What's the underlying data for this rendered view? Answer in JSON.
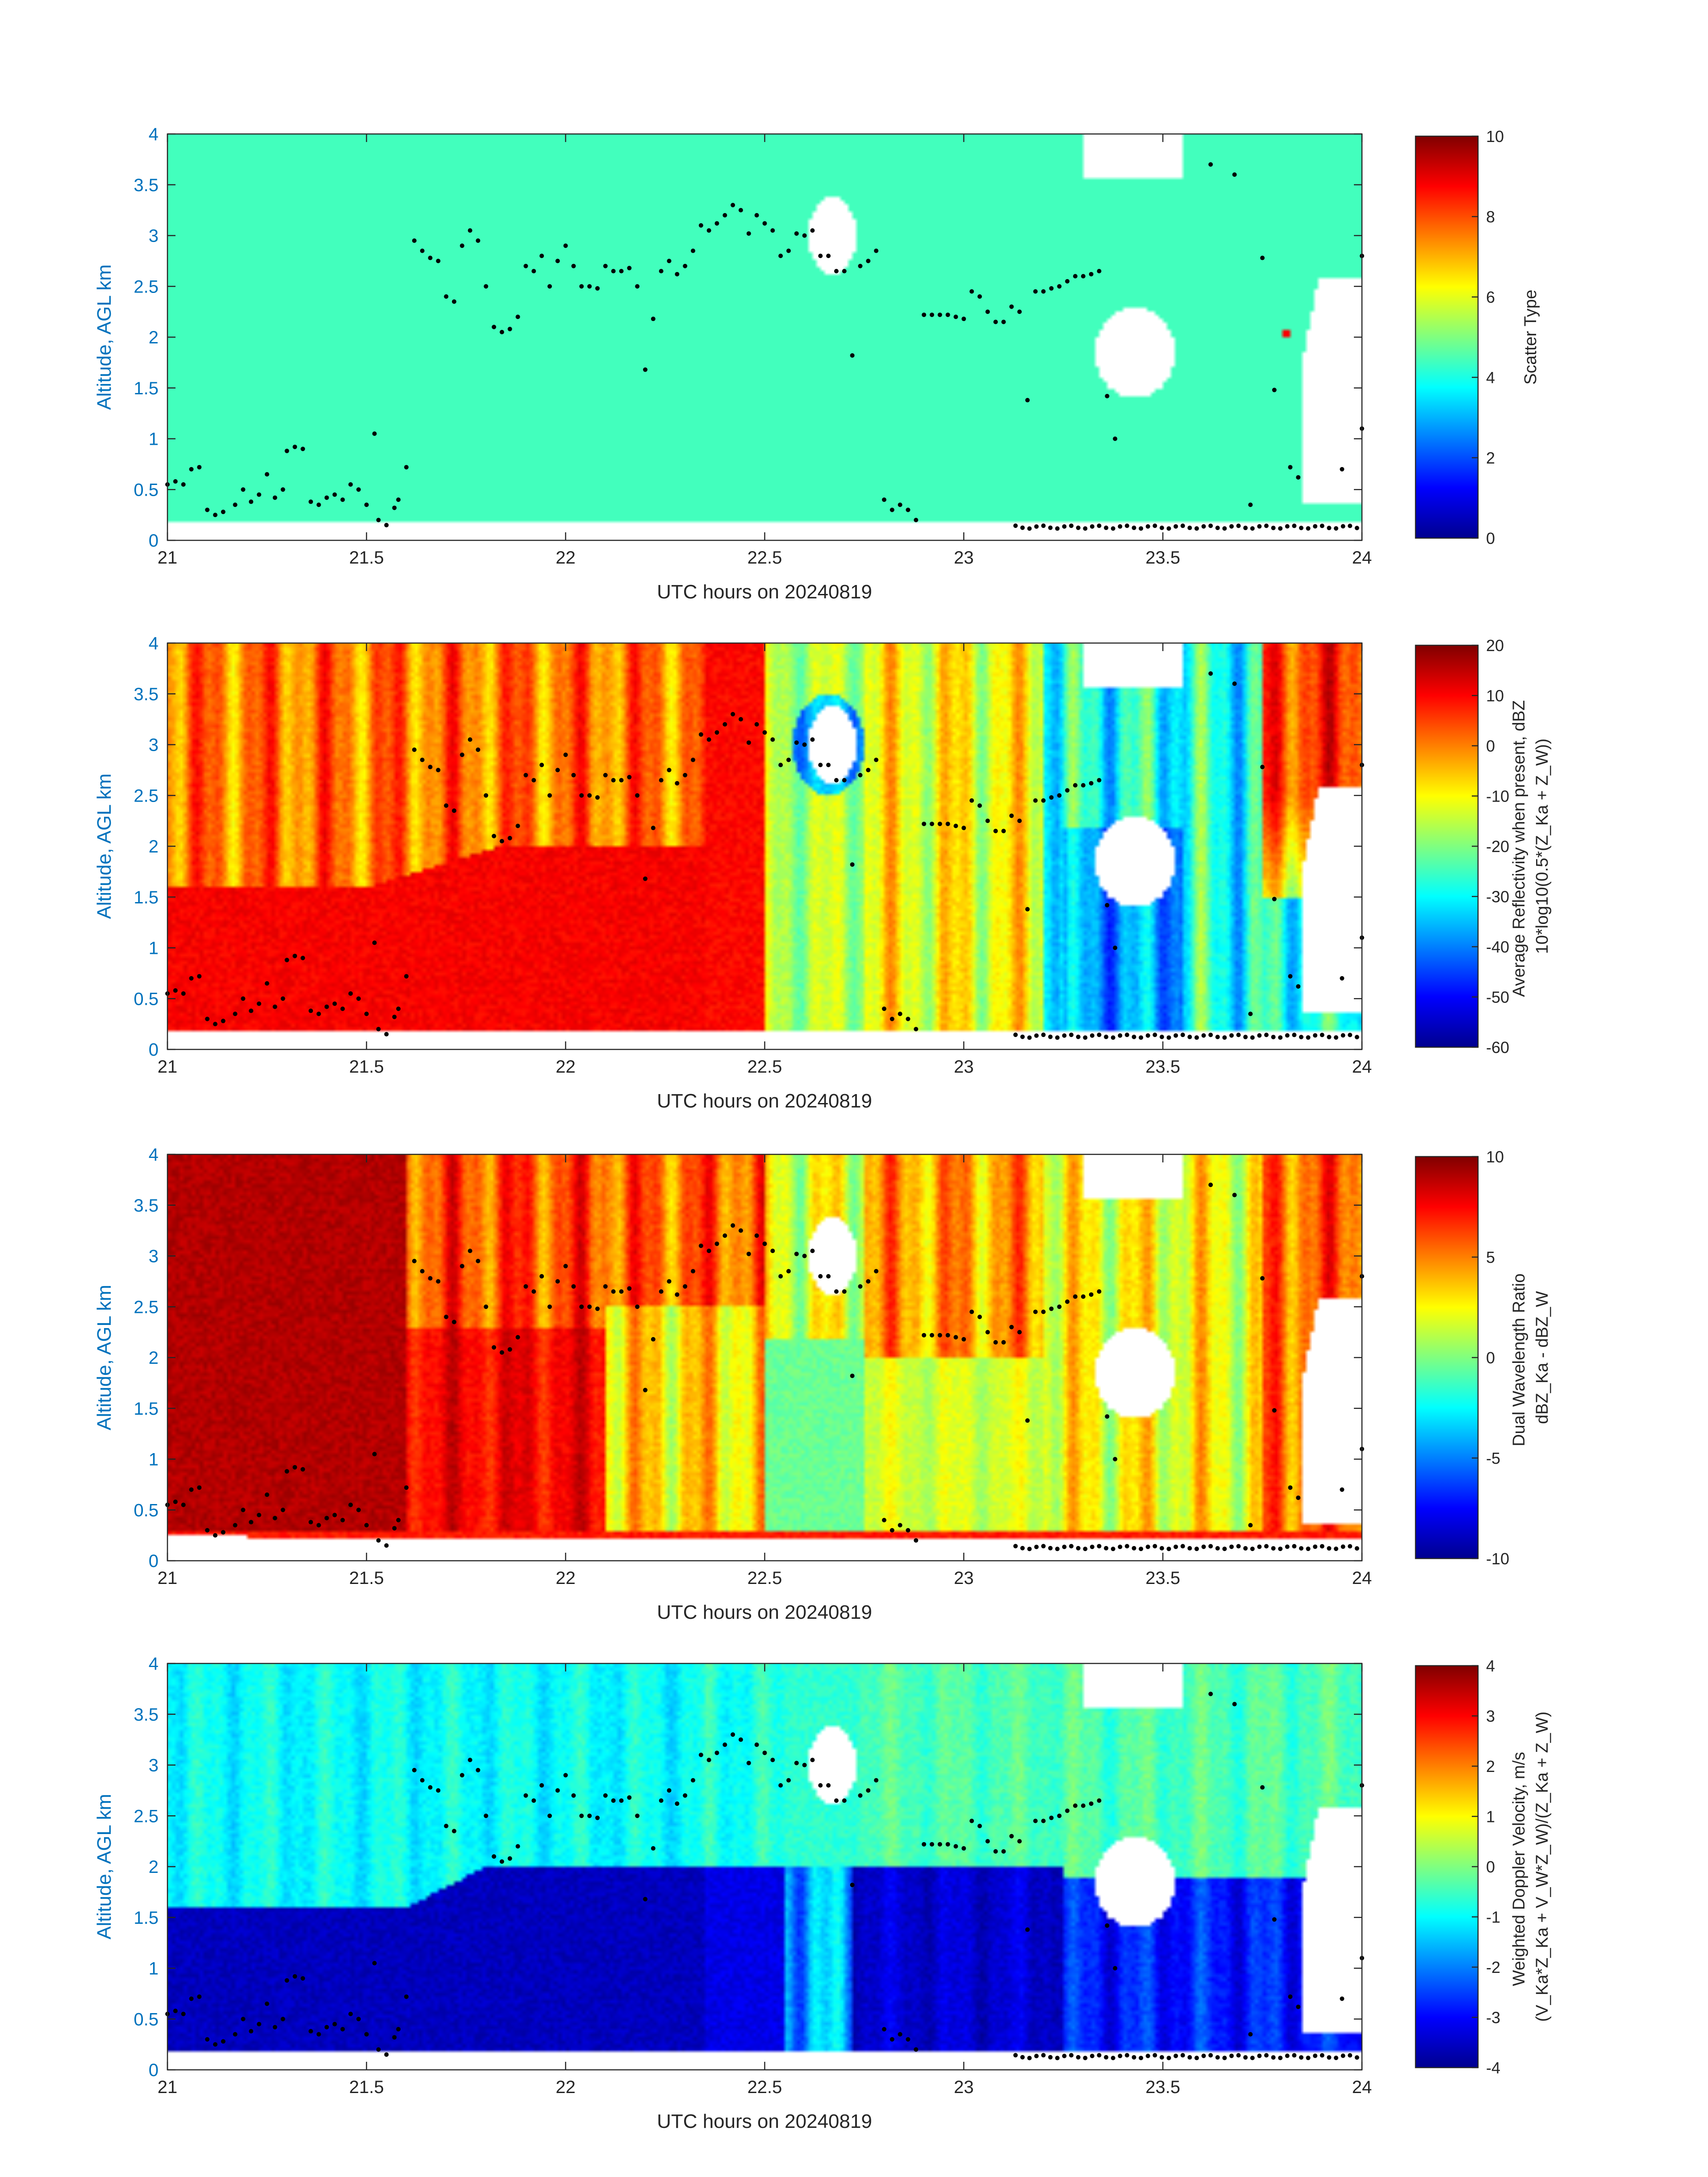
{
  "figure": {
    "date": "20240819",
    "x_tick_labels": [
      "21",
      "21.5",
      "22",
      "22.5",
      "23",
      "23.5",
      "24"
    ],
    "y_tick_labels": [
      "0",
      "0.5",
      "1",
      "1.5",
      "2",
      "2.5",
      "3",
      "3.5",
      "4"
    ],
    "colormap": "jet",
    "background": "#ffffff",
    "axis_color": "#262626",
    "ylabel_color": "#0072BD"
  },
  "chart_data": [
    {
      "type": "heatmap",
      "title": "",
      "xlabel": "UTC hours on 20240819",
      "ylabel": "Altitude, AGL km",
      "xlim": [
        21,
        24
      ],
      "ylim": [
        0,
        4
      ],
      "colorbar": {
        "label_lines": [
          "Scatter Type"
        ],
        "ticks": [
          "0",
          "2",
          "4",
          "6",
          "8",
          "10"
        ],
        "range": [
          0,
          10
        ]
      },
      "field": "scatter"
    },
    {
      "type": "heatmap",
      "title": "",
      "xlabel": "UTC hours on 20240819",
      "ylabel": "Altitude, AGL km",
      "xlim": [
        21,
        24
      ],
      "ylim": [
        0,
        4
      ],
      "colorbar": {
        "label_lines": [
          "Average Reflectivity when present, dBZ",
          "10*log10(0.5*(Z_Ka + Z_W))"
        ],
        "ticks": [
          "-60",
          "-50",
          "-40",
          "-30",
          "-20",
          "-10",
          "0",
          "10",
          "20"
        ],
        "range": [
          -60,
          20
        ]
      },
      "field": "reflectivity"
    },
    {
      "type": "heatmap",
      "title": "",
      "xlabel": "UTC hours on 20240819",
      "ylabel": "Altitude, AGL km",
      "xlim": [
        21,
        24
      ],
      "ylim": [
        0,
        4
      ],
      "colorbar": {
        "label_lines": [
          "Dual Wavelength Ratio",
          "dBZ_Ka - dBZ_W"
        ],
        "ticks": [
          "-10",
          "-5",
          "0",
          "5",
          "10"
        ],
        "range": [
          -10,
          10
        ]
      },
      "field": "dwr"
    },
    {
      "type": "heatmap",
      "title": "",
      "xlabel": "UTC hours on 20240819",
      "ylabel": "Altitude, AGL km",
      "xlim": [
        21,
        24
      ],
      "ylim": [
        0,
        4
      ],
      "colorbar": {
        "label_lines": [
          "Weighted Doppler Velocity, m/s",
          "(V_Ka*Z_Ka + V_W*Z_W)/(Z_Ka + Z_W)"
        ],
        "ticks": [
          "-4",
          "-3",
          "-2",
          "-1",
          "0",
          "1",
          "2",
          "3",
          "4"
        ],
        "range": [
          -4,
          4
        ]
      },
      "field": "velocity"
    }
  ],
  "cloud_base_points": [
    [
      21.0,
      0.55
    ],
    [
      21.02,
      0.58
    ],
    [
      21.04,
      0.55
    ],
    [
      21.06,
      0.7
    ],
    [
      21.08,
      0.72
    ],
    [
      21.1,
      0.3
    ],
    [
      21.12,
      0.25
    ],
    [
      21.14,
      0.28
    ],
    [
      21.17,
      0.35
    ],
    [
      21.19,
      0.5
    ],
    [
      21.21,
      0.38
    ],
    [
      21.23,
      0.45
    ],
    [
      21.25,
      0.65
    ],
    [
      21.27,
      0.42
    ],
    [
      21.29,
      0.5
    ],
    [
      21.3,
      0.88
    ],
    [
      21.32,
      0.92
    ],
    [
      21.34,
      0.9
    ],
    [
      21.36,
      0.38
    ],
    [
      21.38,
      0.35
    ],
    [
      21.4,
      0.42
    ],
    [
      21.42,
      0.45
    ],
    [
      21.44,
      0.4
    ],
    [
      21.46,
      0.55
    ],
    [
      21.48,
      0.5
    ],
    [
      21.5,
      0.35
    ],
    [
      21.52,
      1.05
    ],
    [
      21.53,
      0.2
    ],
    [
      21.55,
      0.15
    ],
    [
      21.57,
      0.32
    ],
    [
      21.58,
      0.4
    ],
    [
      21.6,
      0.72
    ],
    [
      21.62,
      2.95
    ],
    [
      21.64,
      2.85
    ],
    [
      21.66,
      2.78
    ],
    [
      21.68,
      2.75
    ],
    [
      21.7,
      2.4
    ],
    [
      21.72,
      2.35
    ],
    [
      21.74,
      2.9
    ],
    [
      21.76,
      3.05
    ],
    [
      21.78,
      2.95
    ],
    [
      21.8,
      2.5
    ],
    [
      21.82,
      2.1
    ],
    [
      21.84,
      2.05
    ],
    [
      21.86,
      2.08
    ],
    [
      21.88,
      2.2
    ],
    [
      21.9,
      2.7
    ],
    [
      21.92,
      2.65
    ],
    [
      21.94,
      2.8
    ],
    [
      21.96,
      2.5
    ],
    [
      21.98,
      2.75
    ],
    [
      22.0,
      2.9
    ],
    [
      22.02,
      2.7
    ],
    [
      22.04,
      2.5
    ],
    [
      22.06,
      2.5
    ],
    [
      22.08,
      2.48
    ],
    [
      22.1,
      2.7
    ],
    [
      22.12,
      2.65
    ],
    [
      22.14,
      2.65
    ],
    [
      22.16,
      2.68
    ],
    [
      22.18,
      2.5
    ],
    [
      22.2,
      1.68
    ],
    [
      22.22,
      2.18
    ],
    [
      22.24,
      2.65
    ],
    [
      22.26,
      2.75
    ],
    [
      22.28,
      2.62
    ],
    [
      22.3,
      2.7
    ],
    [
      22.32,
      2.85
    ],
    [
      22.34,
      3.1
    ],
    [
      22.36,
      3.05
    ],
    [
      22.38,
      3.12
    ],
    [
      22.4,
      3.2
    ],
    [
      22.42,
      3.3
    ],
    [
      22.44,
      3.25
    ],
    [
      22.46,
      3.02
    ],
    [
      22.48,
      3.2
    ],
    [
      22.5,
      3.12
    ],
    [
      22.52,
      3.05
    ],
    [
      22.54,
      2.8
    ],
    [
      22.56,
      2.85
    ],
    [
      22.58,
      3.02
    ],
    [
      22.6,
      3.0
    ],
    [
      22.62,
      3.05
    ],
    [
      22.64,
      2.8
    ],
    [
      22.66,
      2.8
    ],
    [
      22.68,
      2.65
    ],
    [
      22.7,
      2.65
    ],
    [
      22.72,
      1.82
    ],
    [
      22.74,
      2.7
    ],
    [
      22.76,
      2.75
    ],
    [
      22.78,
      2.85
    ],
    [
      22.8,
      0.4
    ],
    [
      22.82,
      0.3
    ],
    [
      22.84,
      0.35
    ],
    [
      22.86,
      0.3
    ],
    [
      22.88,
      0.2
    ],
    [
      22.9,
      2.22
    ],
    [
      22.92,
      2.22
    ],
    [
      22.94,
      2.22
    ],
    [
      22.96,
      2.22
    ],
    [
      22.98,
      2.2
    ],
    [
      23.0,
      2.18
    ],
    [
      23.02,
      2.45
    ],
    [
      23.04,
      2.4
    ],
    [
      23.06,
      2.25
    ],
    [
      23.08,
      2.15
    ],
    [
      23.1,
      2.15
    ],
    [
      23.12,
      2.3
    ],
    [
      23.14,
      2.25
    ],
    [
      23.16,
      1.38
    ],
    [
      23.18,
      2.45
    ],
    [
      23.2,
      2.45
    ],
    [
      23.22,
      2.48
    ],
    [
      23.24,
      2.5
    ],
    [
      23.26,
      2.55
    ],
    [
      23.28,
      2.6
    ],
    [
      23.3,
      2.6
    ],
    [
      23.32,
      2.62
    ],
    [
      23.34,
      2.65
    ],
    [
      23.36,
      1.42
    ],
    [
      23.38,
      1.0
    ],
    [
      23.62,
      3.7
    ],
    [
      23.68,
      3.6
    ],
    [
      23.72,
      0.35
    ],
    [
      23.75,
      2.78
    ],
    [
      23.78,
      1.48
    ],
    [
      23.82,
      0.72
    ],
    [
      23.84,
      0.62
    ],
    [
      24.0,
      2.8
    ],
    [
      24.02,
      2.95
    ],
    [
      23.95,
      0.7
    ],
    [
      24.0,
      1.1
    ]
  ],
  "surface_points_from": 23.13,
  "surface_points_to": 24.0
}
